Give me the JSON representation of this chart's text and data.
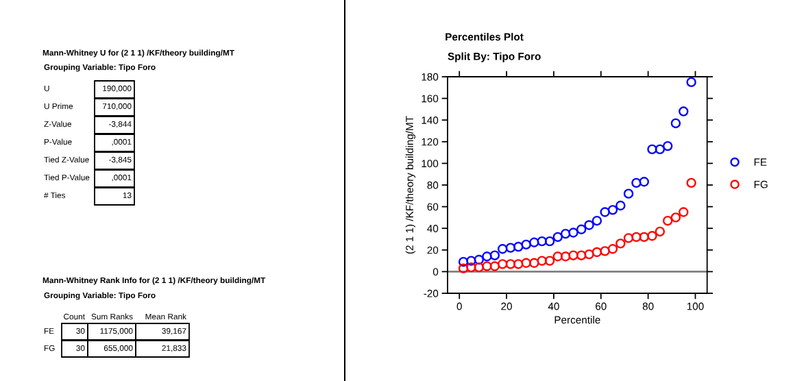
{
  "chart_data": [
    {
      "type": "other",
      "title": "Mann-Whitney U for (2 1 1) /KF/theory building/MT",
      "subtitle": "Grouping Variable: Tipo Foro",
      "annotations": [
        "U",
        "190,000",
        "U Prime",
        "710,000",
        "Z-Value",
        "-3,844",
        "P-Value",
        ",0001",
        "Tied Z-Value",
        "-3,845",
        "Tied P-Value",
        ",0001",
        "# Ties",
        "13"
      ]
    },
    {
      "type": "other",
      "title": "Mann-Whitney Rank Info for (2 1 1) /KF/theory building/MT",
      "subtitle": "Grouping Variable: Tipo Foro",
      "annotations": [
        "Count",
        "Sum Ranks",
        "Mean Rank",
        "FE",
        "30",
        "1175,000",
        "39,167",
        "FG",
        "30",
        "655,000",
        "21,833"
      ]
    },
    {
      "type": "scatter",
      "title": "Percentiles Plot",
      "subtitle": "Split By: Tipo Foro",
      "xlabel": "Percentile",
      "ylabel": "(2 1 1) /KF/theory building/MT",
      "x": [
        1.7,
        5.0,
        8.3,
        11.7,
        15.0,
        18.3,
        21.7,
        25.0,
        28.3,
        31.7,
        35.0,
        38.3,
        41.7,
        45.0,
        48.3,
        51.7,
        55.0,
        58.3,
        61.7,
        65.0,
        68.3,
        71.7,
        75.0,
        78.3,
        81.7,
        85.0,
        88.3,
        91.7,
        95.0,
        98.3
      ],
      "series": [
        {
          "name": "FE",
          "color": "#0000ff",
          "values": [
            9,
            10,
            11,
            14,
            15,
            21,
            22,
            23,
            25,
            27,
            28,
            28,
            32,
            35,
            36,
            39,
            43,
            47,
            55,
            57,
            61,
            72,
            82,
            83,
            113,
            113,
            116,
            137,
            148,
            175
          ]
        },
        {
          "name": "FG",
          "color": "#ff0000",
          "values": [
            3,
            4,
            4,
            5,
            5,
            7,
            7,
            7,
            8,
            8,
            10,
            10,
            14,
            14,
            15,
            15,
            16,
            18,
            19,
            21,
            26,
            31,
            32,
            32,
            33,
            37,
            47,
            50,
            55,
            82
          ]
        }
      ],
      "xlim": [
        -5,
        105
      ],
      "xticks": [
        0,
        20,
        40,
        60,
        80,
        100
      ],
      "ylim": [
        -20,
        180
      ],
      "yticks": [
        -20,
        0,
        20,
        40,
        60,
        80,
        100,
        120,
        140,
        160,
        180
      ],
      "ref_lines": [
        {
          "axis": "y",
          "value": 0,
          "color": "#808080"
        }
      ],
      "marker": "circle",
      "legend": "right",
      "grid": false
    }
  ]
}
